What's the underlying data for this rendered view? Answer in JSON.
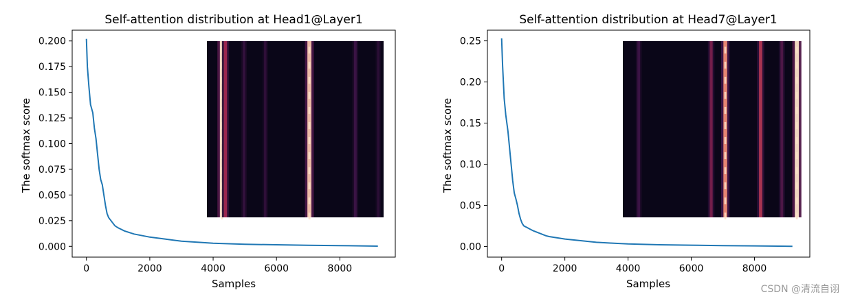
{
  "watermark": "CSDN @清流自诩",
  "chart_data": [
    {
      "type": "line",
      "title": "Self-attention distribution at Head1@Layer1",
      "xlabel": "Samples",
      "ylabel": "The softmax score",
      "xlim": [
        -450,
        9750
      ],
      "ylim": [
        -0.0105,
        0.2105
      ],
      "xticks": [
        0,
        2000,
        4000,
        6000,
        8000
      ],
      "xtick_labels": [
        "0",
        "2000",
        "4000",
        "6000",
        "8000"
      ],
      "yticks": [
        0.0,
        0.025,
        0.05,
        0.075,
        0.1,
        0.125,
        0.15,
        0.175,
        0.2
      ],
      "ytick_labels": [
        "0.000",
        "0.025",
        "0.050",
        "0.075",
        "0.100",
        "0.125",
        "0.150",
        "0.175",
        "0.200"
      ],
      "grid": false,
      "line_color": "#1f77b4",
      "series": [
        {
          "x": [
            0,
            30,
            80,
            130,
            200,
            250,
            300,
            350,
            400,
            450,
            500,
            550,
            600,
            650,
            700,
            800,
            900,
            1000,
            1200,
            1500,
            2000,
            2500,
            3000,
            3500,
            4000,
            5000,
            6000,
            7000,
            8000,
            9200
          ],
          "y": [
            0.202,
            0.175,
            0.155,
            0.138,
            0.13,
            0.115,
            0.105,
            0.09,
            0.075,
            0.065,
            0.06,
            0.05,
            0.04,
            0.032,
            0.028,
            0.024,
            0.02,
            0.018,
            0.015,
            0.012,
            0.009,
            0.007,
            0.005,
            0.004,
            0.003,
            0.002,
            0.0015,
            0.001,
            0.0007,
            0.0002
          ]
        }
      ],
      "inset": {
        "type": "heatmap",
        "background": "#0a0618",
        "stripes": [
          {
            "pos": 0.085,
            "intensity": 1.0
          },
          {
            "pos": 0.105,
            "intensity": 0.55
          },
          {
            "pos": 0.21,
            "intensity": 0.25
          },
          {
            "pos": 0.33,
            "intensity": 0.22
          },
          {
            "pos": 0.58,
            "intensity": 0.95
          },
          {
            "pos": 0.84,
            "intensity": 0.3
          },
          {
            "pos": 0.97,
            "intensity": 0.2
          }
        ]
      }
    },
    {
      "type": "line",
      "title": "Self-attention distribution at Head7@Layer1",
      "xlabel": "Samples",
      "ylabel": "The softmax score",
      "xlim": [
        -450,
        9750
      ],
      "ylim": [
        -0.013,
        0.263
      ],
      "xticks": [
        0,
        2000,
        4000,
        6000,
        8000
      ],
      "xtick_labels": [
        "0",
        "2000",
        "4000",
        "6000",
        "8000"
      ],
      "yticks": [
        0.0,
        0.05,
        0.1,
        0.15,
        0.2,
        0.25
      ],
      "ytick_labels": [
        "0.00",
        "0.05",
        "0.10",
        "0.15",
        "0.20",
        "0.25"
      ],
      "grid": false,
      "line_color": "#1f77b4",
      "series": [
        {
          "x": [
            0,
            30,
            80,
            130,
            200,
            250,
            300,
            350,
            400,
            450,
            500,
            550,
            600,
            650,
            700,
            800,
            900,
            1000,
            1200,
            1400,
            1500,
            2000,
            2500,
            3000,
            3500,
            4000,
            5000,
            6000,
            7000,
            8000,
            9200
          ],
          "y": [
            0.253,
            0.22,
            0.18,
            0.16,
            0.14,
            0.12,
            0.1,
            0.08,
            0.065,
            0.058,
            0.05,
            0.04,
            0.033,
            0.028,
            0.025,
            0.023,
            0.021,
            0.019,
            0.016,
            0.013,
            0.012,
            0.009,
            0.007,
            0.005,
            0.004,
            0.003,
            0.002,
            0.0015,
            0.001,
            0.0007,
            0.0002
          ]
        }
      ],
      "inset": {
        "type": "heatmap",
        "background": "#0a0618",
        "stripes": [
          {
            "pos": 0.09,
            "intensity": 0.3
          },
          {
            "pos": 0.5,
            "intensity": 0.45
          },
          {
            "pos": 0.58,
            "intensity": 0.85
          },
          {
            "pos": 0.78,
            "intensity": 0.6
          },
          {
            "pos": 0.9,
            "intensity": 0.35
          },
          {
            "pos": 0.985,
            "intensity": 1.0
          }
        ]
      }
    }
  ]
}
